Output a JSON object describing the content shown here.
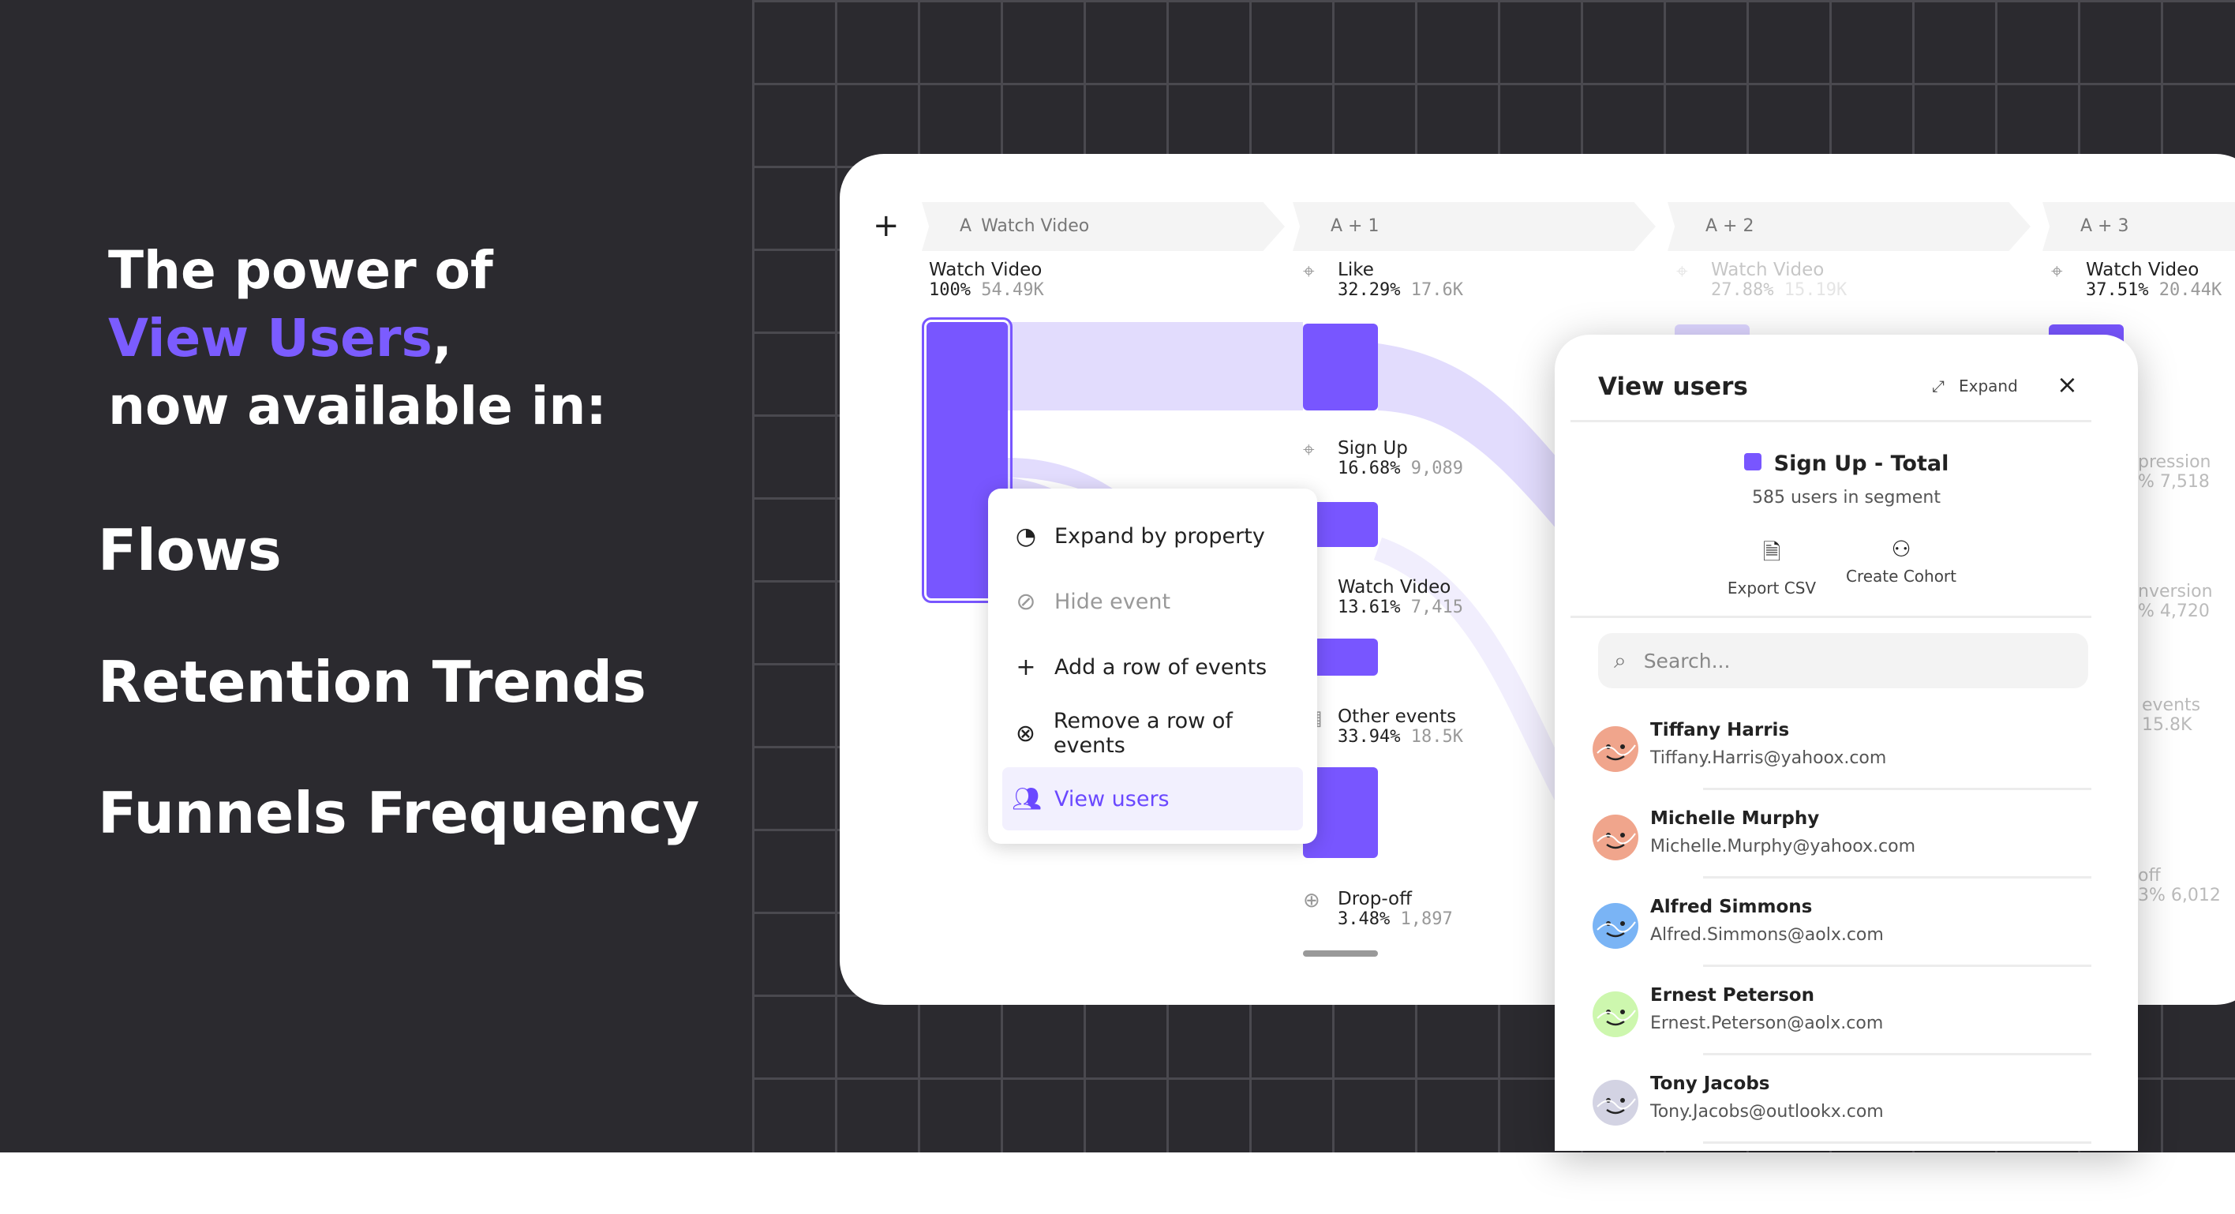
{
  "hero": {
    "line1": "The power of",
    "accent": "View Users",
    "comma": ",",
    "line3": "now available in:"
  },
  "products": [
    "Flows",
    "Retention Trends",
    "Funnels Frequency"
  ],
  "colors": {
    "accent": "#7856ff",
    "ribbon": "#e2dcfd",
    "background": "#2b2a2f"
  },
  "flow": {
    "add_icon": "plus-icon",
    "columns": [
      {
        "prefix": "A",
        "label": "Watch Video"
      },
      {
        "label": "A + 1"
      },
      {
        "label": "A + 2"
      },
      {
        "label": "A + 3"
      }
    ],
    "col_a": {
      "name": "Watch Video",
      "pct": "100%",
      "count": "54.49K"
    },
    "col1": [
      {
        "name": "Like",
        "pct": "32.29%",
        "count": "17.6K",
        "icon": "cursor-click-icon"
      },
      {
        "name": "Sign Up",
        "pct": "16.68%",
        "count": "9,089",
        "icon": "cursor-click-icon"
      },
      {
        "name": "Watch Video",
        "pct": "13.61%",
        "count": "7,415",
        "icon": "cursor-click-icon"
      },
      {
        "name": "Other events",
        "pct": "33.94%",
        "count": "18.5K",
        "icon": "grid-icon"
      },
      {
        "name": "Drop-off",
        "pct": "3.48%",
        "count": "1,897",
        "icon": "arrow-down-circle-icon"
      }
    ],
    "col2_top": {
      "name": "Watch Video",
      "pct": "27.88%",
      "count": "15.19K"
    },
    "col3_top": {
      "name": "Watch Video",
      "pct": "37.51%",
      "count": "20.44K"
    },
    "col3_fragments": [
      {
        "name": "pression",
        "val": "% 7,518"
      },
      {
        "name": "nversion",
        "val": "% 4,720"
      },
      {
        "name": "events",
        "val": "15.8K"
      },
      {
        "name": "off",
        "val": "3% 6,012"
      }
    ]
  },
  "menu": {
    "items": [
      {
        "label": "Expand by property",
        "icon": "expand-property-icon"
      },
      {
        "label": "Hide event",
        "icon": "eye-off-icon"
      },
      {
        "label": "Add a row of events",
        "icon": "plus-icon"
      },
      {
        "label": "Remove a row of events",
        "icon": "x-circle-icon"
      },
      {
        "label": "View users",
        "icon": "users-icon"
      }
    ]
  },
  "panel": {
    "title": "View users",
    "expand": "Expand",
    "segment": "Sign Up - Total",
    "segment_count": "585 users in segment",
    "export": "Export CSV",
    "cohort": "Create Cohort",
    "search_placeholder": "Search...",
    "users": [
      {
        "name": "Tiffany Harris",
        "email": "Tiffany.Harris@yahoox.com",
        "color": "#f0a58c"
      },
      {
        "name": "Michelle Murphy",
        "email": "Michelle.Murphy@yahoox.com",
        "color": "#f0a58c"
      },
      {
        "name": "Alfred Simmons",
        "email": "Alfred.Simmons@aolx.com",
        "color": "#7ab4f5"
      },
      {
        "name": "Ernest Peterson",
        "email": "Ernest.Peterson@aolx.com",
        "color": "#cdf7ae"
      },
      {
        "name": "Tony Jacobs",
        "email": "Tony.Jacobs@outlookx.com",
        "color": "#d3d3e3"
      }
    ]
  }
}
